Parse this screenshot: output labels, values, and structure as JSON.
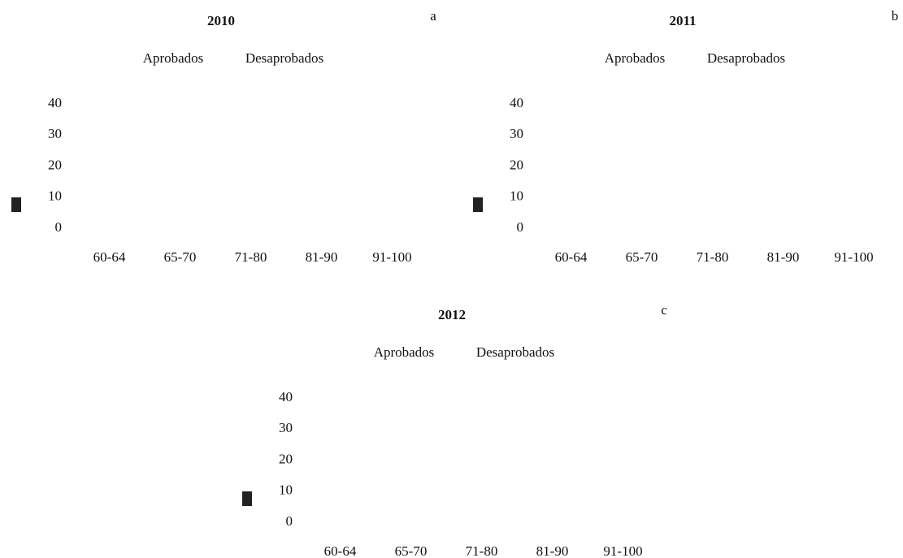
{
  "chart_data": [
    {
      "type": "bar",
      "title": "2010",
      "panel_label": "a",
      "categories": [
        "60-64",
        "65-70",
        "71-80",
        "81-90",
        "91-100"
      ],
      "series": [
        {
          "name": "Aprobados",
          "values": [
            null,
            null,
            null,
            null,
            null
          ]
        },
        {
          "name": "Desaprobados",
          "values": [
            null,
            null,
            null,
            null,
            null
          ]
        }
      ],
      "ylim": [
        0,
        40
      ],
      "yticks": [
        0,
        10,
        20,
        30,
        40
      ],
      "grid": false
    },
    {
      "type": "bar",
      "title": "2011",
      "panel_label": "b",
      "categories": [
        "60-64",
        "65-70",
        "71-80",
        "81-90",
        "91-100"
      ],
      "series": [
        {
          "name": "Aprobados",
          "values": [
            null,
            null,
            null,
            null,
            null
          ]
        },
        {
          "name": "Desaprobados",
          "values": [
            null,
            null,
            null,
            null,
            null
          ]
        }
      ],
      "ylim": [
        0,
        40
      ],
      "yticks": [
        0,
        10,
        20,
        30,
        40
      ],
      "grid": false
    },
    {
      "type": "bar",
      "title": "2012",
      "panel_label": "c",
      "categories": [
        "60-64",
        "65-70",
        "71-80",
        "81-90",
        "91-100"
      ],
      "series": [
        {
          "name": "Aprobados",
          "values": [
            null,
            null,
            null,
            null,
            null
          ]
        },
        {
          "name": "Desaprobados",
          "values": [
            null,
            null,
            null,
            null,
            null
          ]
        }
      ],
      "ylim": [
        0,
        40
      ],
      "yticks": [
        0,
        10,
        20,
        30,
        40
      ],
      "grid": false
    }
  ]
}
